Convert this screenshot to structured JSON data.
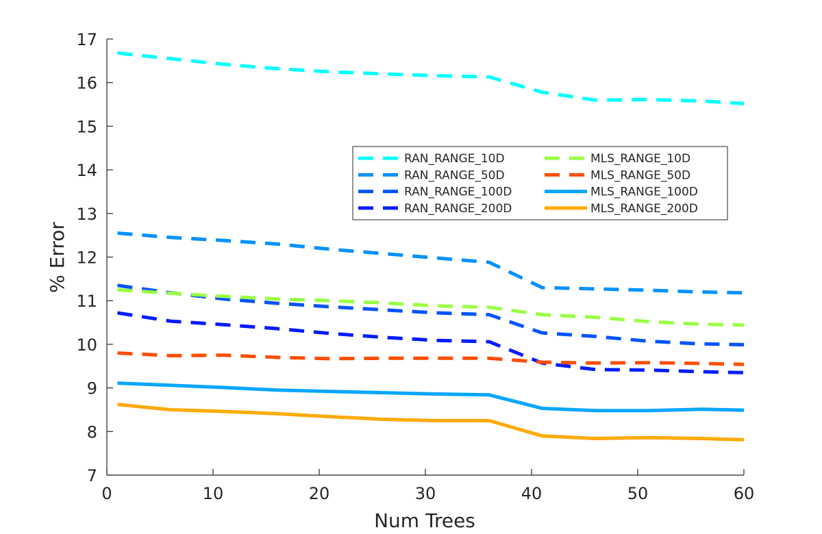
{
  "chart_data": {
    "type": "line",
    "xlabel": "Num Trees",
    "ylabel": "% Error",
    "xlim": [
      0,
      60
    ],
    "ylim": [
      7,
      17
    ],
    "xticks": [
      0,
      10,
      20,
      30,
      40,
      50,
      60
    ],
    "yticks": [
      7,
      8,
      9,
      10,
      11,
      12,
      13,
      14,
      15,
      16,
      17
    ],
    "grid": false,
    "legend_position": "upper-right",
    "legend_columns": 2,
    "x": [
      1,
      6,
      11,
      16,
      21,
      26,
      31,
      36,
      41,
      46,
      51,
      56,
      60
    ],
    "series": [
      {
        "name": "RAN_RANGE_10D",
        "color": "#00ffff",
        "style": "dashed",
        "values": [
          16.68,
          16.55,
          16.42,
          16.32,
          16.25,
          16.2,
          16.16,
          16.13,
          15.78,
          15.6,
          15.61,
          15.58,
          15.52
        ]
      },
      {
        "name": "RAN_RANGE_50D",
        "color": "#0091ff",
        "style": "dashed",
        "values": [
          12.55,
          12.45,
          12.38,
          12.3,
          12.18,
          12.08,
          11.98,
          11.88,
          11.3,
          11.27,
          11.24,
          11.2,
          11.18
        ]
      },
      {
        "name": "RAN_RANGE_100D",
        "color": "#0054ff",
        "style": "dashed",
        "values": [
          11.35,
          11.18,
          11.04,
          10.94,
          10.86,
          10.79,
          10.72,
          10.68,
          10.26,
          10.18,
          10.07,
          10.01,
          9.99
        ]
      },
      {
        "name": "RAN_RANGE_200D",
        "color": "#001bff",
        "style": "dashed",
        "values": [
          10.72,
          10.53,
          10.45,
          10.36,
          10.25,
          10.16,
          10.09,
          10.06,
          9.57,
          9.42,
          9.41,
          9.37,
          9.35
        ]
      },
      {
        "name": "MLS_RANGE_10D",
        "color": "#99ff44",
        "style": "dashed",
        "values": [
          11.25,
          11.17,
          11.1,
          11.04,
          11.0,
          10.95,
          10.88,
          10.85,
          10.68,
          10.62,
          10.52,
          10.46,
          10.44
        ]
      },
      {
        "name": "MLS_RANGE_50D",
        "color": "#ff4d00",
        "style": "dashed",
        "values": [
          9.8,
          9.74,
          9.75,
          9.7,
          9.67,
          9.68,
          9.68,
          9.68,
          9.59,
          9.57,
          9.58,
          9.56,
          9.54
        ]
      },
      {
        "name": "MLS_RANGE_100D",
        "color": "#00a6ff",
        "style": "solid",
        "values": [
          9.11,
          9.06,
          9.01,
          8.95,
          8.92,
          8.89,
          8.86,
          8.84,
          8.53,
          8.48,
          8.48,
          8.51,
          8.49
        ]
      },
      {
        "name": "MLS_RANGE_200D",
        "color": "#ffaa00",
        "style": "solid",
        "values": [
          8.62,
          8.5,
          8.46,
          8.41,
          8.34,
          8.28,
          8.25,
          8.25,
          7.9,
          7.84,
          7.86,
          7.84,
          7.81
        ]
      }
    ]
  }
}
